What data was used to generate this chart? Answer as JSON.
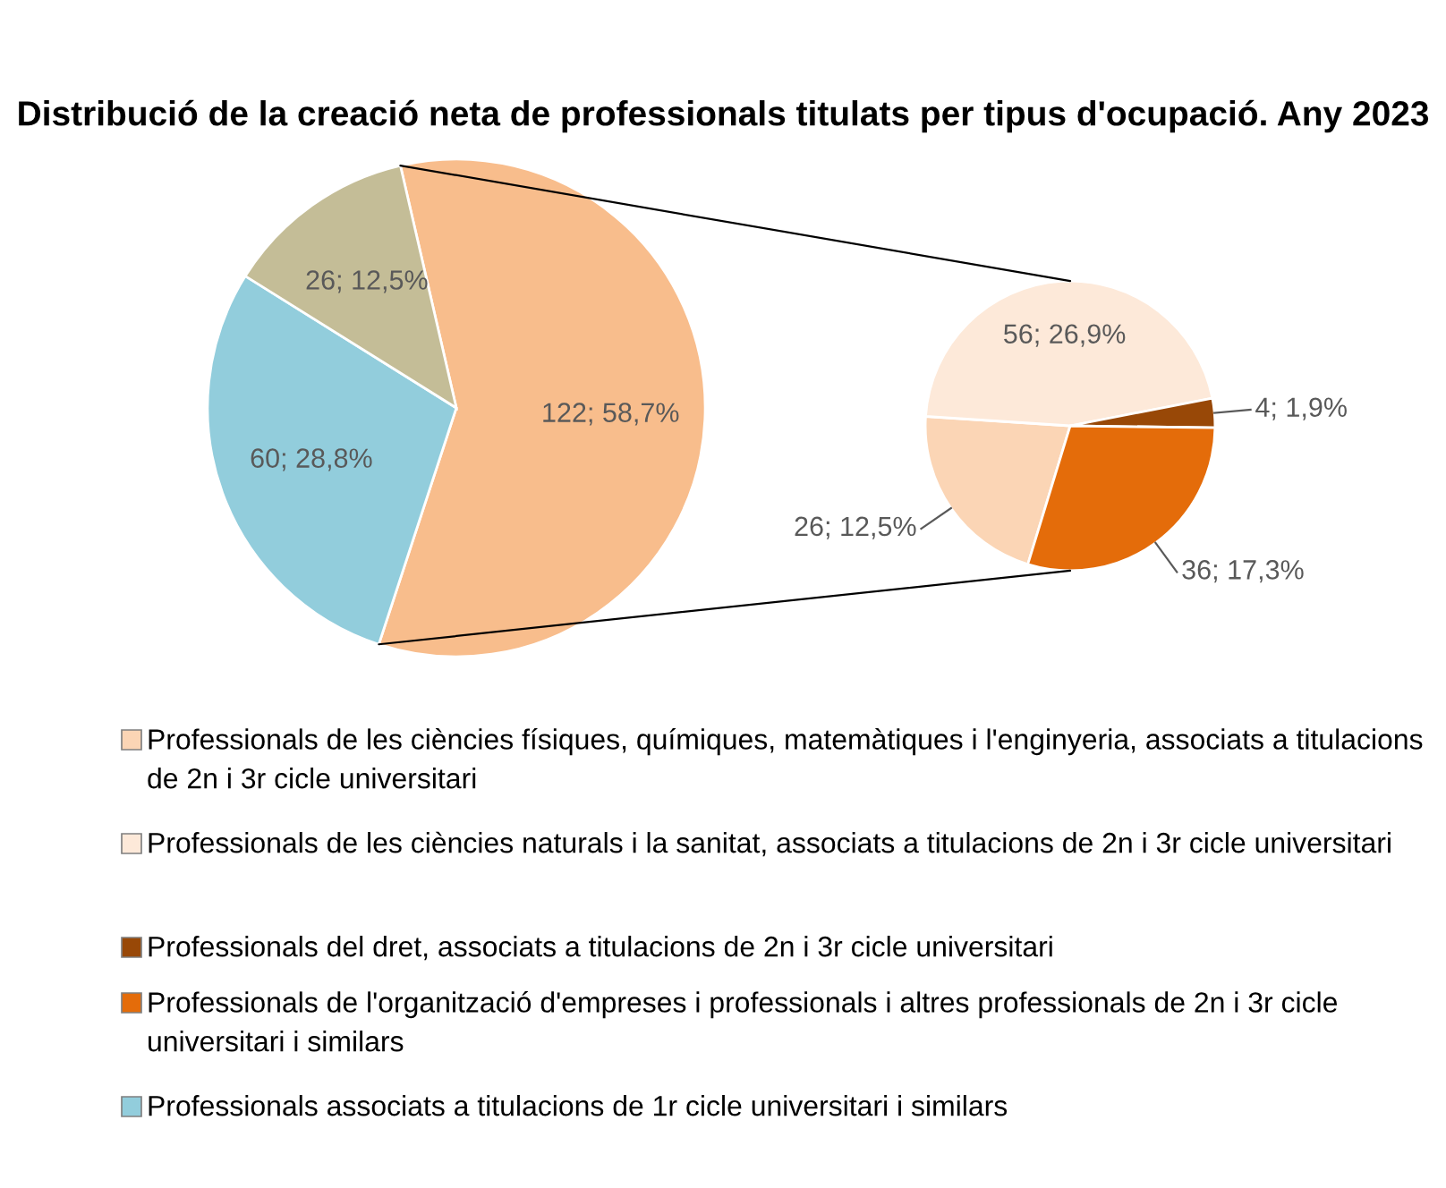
{
  "chart_data": [
    {
      "type": "pie",
      "title": "Distribució de la creació neta de professionals titulats per tipus d'ocupació. Any 2023",
      "legend": "bottom",
      "categories": [
        null,
        "Professionals associats a titulacions de 1r cicle universitari i similars",
        null
      ],
      "values": [
        122,
        60,
        26
      ],
      "colors": [
        "#f8bd8c",
        "#92cddc",
        "#c4bd97"
      ],
      "value_labels": [
        "122; 58,7%",
        "60; 28,8%",
        "26; 12,5%"
      ]
    },
    {
      "type": "pie",
      "legend": "bottom",
      "categories": [
        "Professionals de les ciències físiques, químiques, matemàtiques i l'enginyeria, associats a titulacions de 2n i 3r cicle universitari",
        "Professionals de les ciències naturals i la sanitat, associats a titulacions de 2n i 3r cicle universitari",
        "Professionals del dret, associats a titulacions de 2n i 3r cicle universitari",
        "Professionals de l'organització d'empreses i professionals i altres professionals de 2n i 3r cicle universitari i similars"
      ],
      "values": [
        26,
        56,
        4,
        36
      ],
      "colors": [
        "#fbd5b5",
        "#fde9d9",
        "#984807",
        "#e46c0a"
      ],
      "value_labels": [
        "26; 12,5%",
        "56; 26,9%",
        "4; 1,9%",
        "36; 17,3%"
      ]
    }
  ]
}
